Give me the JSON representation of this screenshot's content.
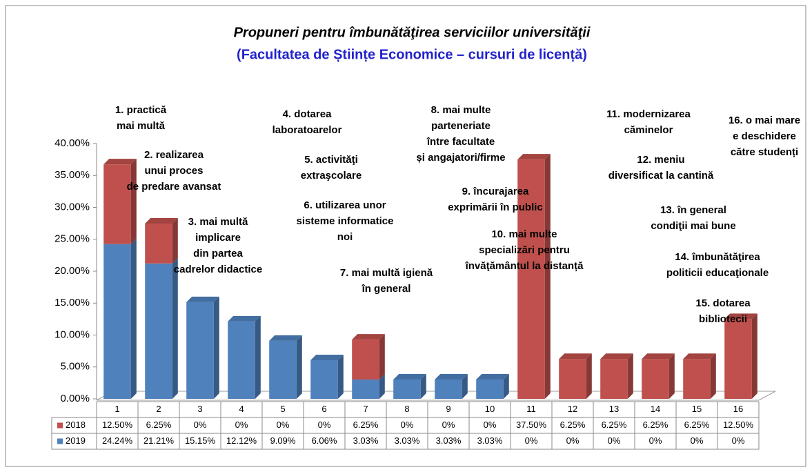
{
  "chart_data": {
    "type": "bar",
    "stacked": true,
    "title": "Propuneri pentru îmbunătăţirea  serviciilor universităţii",
    "subtitle": "(Facultatea de Științe Economice – cursuri de licență)",
    "categories": [
      "1",
      "2",
      "3",
      "4",
      "5",
      "6",
      "7",
      "8",
      "9",
      "10",
      "11",
      "12",
      "13",
      "14",
      "15",
      "16"
    ],
    "series": [
      {
        "name": "2019",
        "color": "#4f81bd",
        "values": [
          24.24,
          21.21,
          15.15,
          12.12,
          9.09,
          6.06,
          3.03,
          3.03,
          3.03,
          3.03,
          0,
          0,
          0,
          0,
          0,
          0
        ],
        "value_labels": [
          "24.24%",
          "21.21%",
          "15.15%",
          "12.12%",
          "9.09%",
          "6.06%",
          "3.03%",
          "3.03%",
          "3.03%",
          "3.03%",
          "0%",
          "0%",
          "0%",
          "0%",
          "0%",
          "0%"
        ]
      },
      {
        "name": "2018",
        "color": "#c0504d",
        "values": [
          12.5,
          6.25,
          0,
          0,
          0,
          0,
          6.25,
          0,
          0,
          0,
          37.5,
          6.25,
          6.25,
          6.25,
          6.25,
          12.5
        ],
        "value_labels": [
          "12.50%",
          "6.25%",
          "0%",
          "0%",
          "0%",
          "0%",
          "6.25%",
          "0%",
          "0%",
          "0%",
          "37.50%",
          "6.25%",
          "6.25%",
          "6.25%",
          "6.25%",
          "12.50%"
        ]
      }
    ],
    "ylim": [
      0,
      40
    ],
    "yticks": [
      {
        "value": 0,
        "label": "0.00%"
      },
      {
        "value": 5,
        "label": "5.00%"
      },
      {
        "value": 10,
        "label": "10.00%"
      },
      {
        "value": 15,
        "label": "15.00%"
      },
      {
        "value": 20,
        "label": "20.00%"
      },
      {
        "value": 25,
        "label": "25.00%"
      },
      {
        "value": 30,
        "label": "30.00%"
      },
      {
        "value": 35,
        "label": "35.00%"
      },
      {
        "value": 40,
        "label": "40.00%"
      }
    ],
    "annotations": [
      [
        "1. practică",
        "mai multă"
      ],
      [
        "2. realizarea",
        "unui proces",
        "de predare avansat"
      ],
      [
        "3. mai multă",
        "implicare",
        "din partea",
        "cadrelor didactice"
      ],
      [
        "4. dotarea",
        "laboratoarelor"
      ],
      [
        "5. activităţi",
        "extraşcolare"
      ],
      [
        "6. utilizarea unor",
        "sisteme informatice",
        "noi"
      ],
      [
        "7. mai multă igienă",
        "în general"
      ],
      [
        "8. mai multe",
        "parteneriate",
        "între facultate",
        "și  angajatori/firme"
      ],
      [
        "9. încurajarea",
        "exprimării în public"
      ],
      [
        "10. mai multe",
        "specializări pentru",
        "învăţământul la distanță"
      ],
      [
        "11. modernizarea",
        "căminelor"
      ],
      [
        "12. meniu",
        "diversificat la cantină"
      ],
      [
        "13. în general",
        "condiţii mai bune"
      ],
      [
        "14. îmbunătăţirea",
        "politicii educaţionale"
      ],
      [
        "15. dotarea",
        "bibliotecii"
      ],
      [
        "16. o mai mare",
        "e deschidere",
        "către studenți"
      ]
    ]
  }
}
